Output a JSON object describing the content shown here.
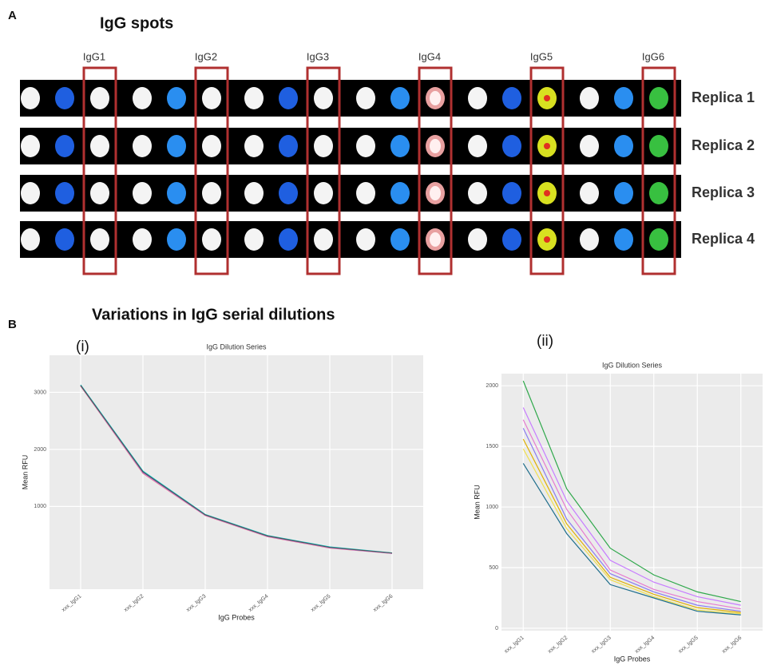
{
  "panel_a": {
    "label": "A",
    "title": "IgG spots",
    "probes": [
      "IgG1",
      "IgG2",
      "IgG3",
      "IgG4",
      "IgG5",
      "IgG6"
    ],
    "replicas": [
      "Replica 1",
      "Replica 2",
      "Replica 3",
      "Replica 4"
    ]
  },
  "panel_b": {
    "label": "B",
    "title": "Variations in IgG serial dilutions",
    "subpanels": [
      "(i)",
      "(ii)"
    ]
  },
  "chart_data": [
    {
      "type": "line",
      "title": "IgG Dilution Series",
      "x_label": "IgG Probes",
      "y_label": "Mean RFU",
      "categories": [
        "xxx_IgG1",
        "xxx_IgG2",
        "xxx_IgG3",
        "xxx_IgG4",
        "xxx_IgG5",
        "xxx_IgG6"
      ],
      "ylim": [
        -450,
        3650
      ],
      "yticks": [
        1000,
        2000,
        3000
      ],
      "grid": true,
      "series": [
        {
          "color": "#f8766d",
          "values": [
            3110,
            1580,
            840,
            470,
            270,
            175
          ]
        },
        {
          "color": "#7cae00",
          "values": [
            3120,
            1600,
            850,
            480,
            280,
            180
          ]
        },
        {
          "color": "#00bfc4",
          "values": [
            3130,
            1620,
            860,
            490,
            290,
            185
          ]
        },
        {
          "color": "#c77cff",
          "values": [
            3115,
            1590,
            845,
            475,
            275,
            178
          ]
        },
        {
          "color": "#555555",
          "values": [
            3120,
            1605,
            852,
            482,
            282,
            182
          ]
        }
      ]
    },
    {
      "type": "line",
      "title": "IgG Dilution Series",
      "x_label": "IgG Probes",
      "y_label": "Mean RFU",
      "categories": [
        "xxx_IgG1",
        "xxx_IgG2",
        "xxx_IgG3",
        "xxx_IgG4",
        "xxx_IgG5",
        "xxx_IgG6"
      ],
      "ylim": [
        -20,
        2100
      ],
      "yticks": [
        0,
        500,
        1000,
        1500,
        2000
      ],
      "grid": true,
      "series": [
        {
          "color": "#2ea84a",
          "values": [
            2040,
            1150,
            660,
            440,
            300,
            220
          ]
        },
        {
          "color": "#c77cff",
          "values": [
            1820,
            1050,
            560,
            380,
            260,
            190
          ]
        },
        {
          "color": "#e67ad0",
          "values": [
            1720,
            980,
            480,
            320,
            220,
            160
          ]
        },
        {
          "color": "#8a7cf0",
          "values": [
            1650,
            900,
            450,
            300,
            190,
            140
          ]
        },
        {
          "color": "#e0b000",
          "values": [
            1560,
            860,
            420,
            280,
            170,
            130
          ]
        },
        {
          "color": "#f0e050",
          "values": [
            1480,
            820,
            400,
            260,
            150,
            120
          ]
        },
        {
          "color": "#1f6e8c",
          "values": [
            1360,
            780,
            360,
            250,
            140,
            110
          ]
        }
      ]
    }
  ]
}
